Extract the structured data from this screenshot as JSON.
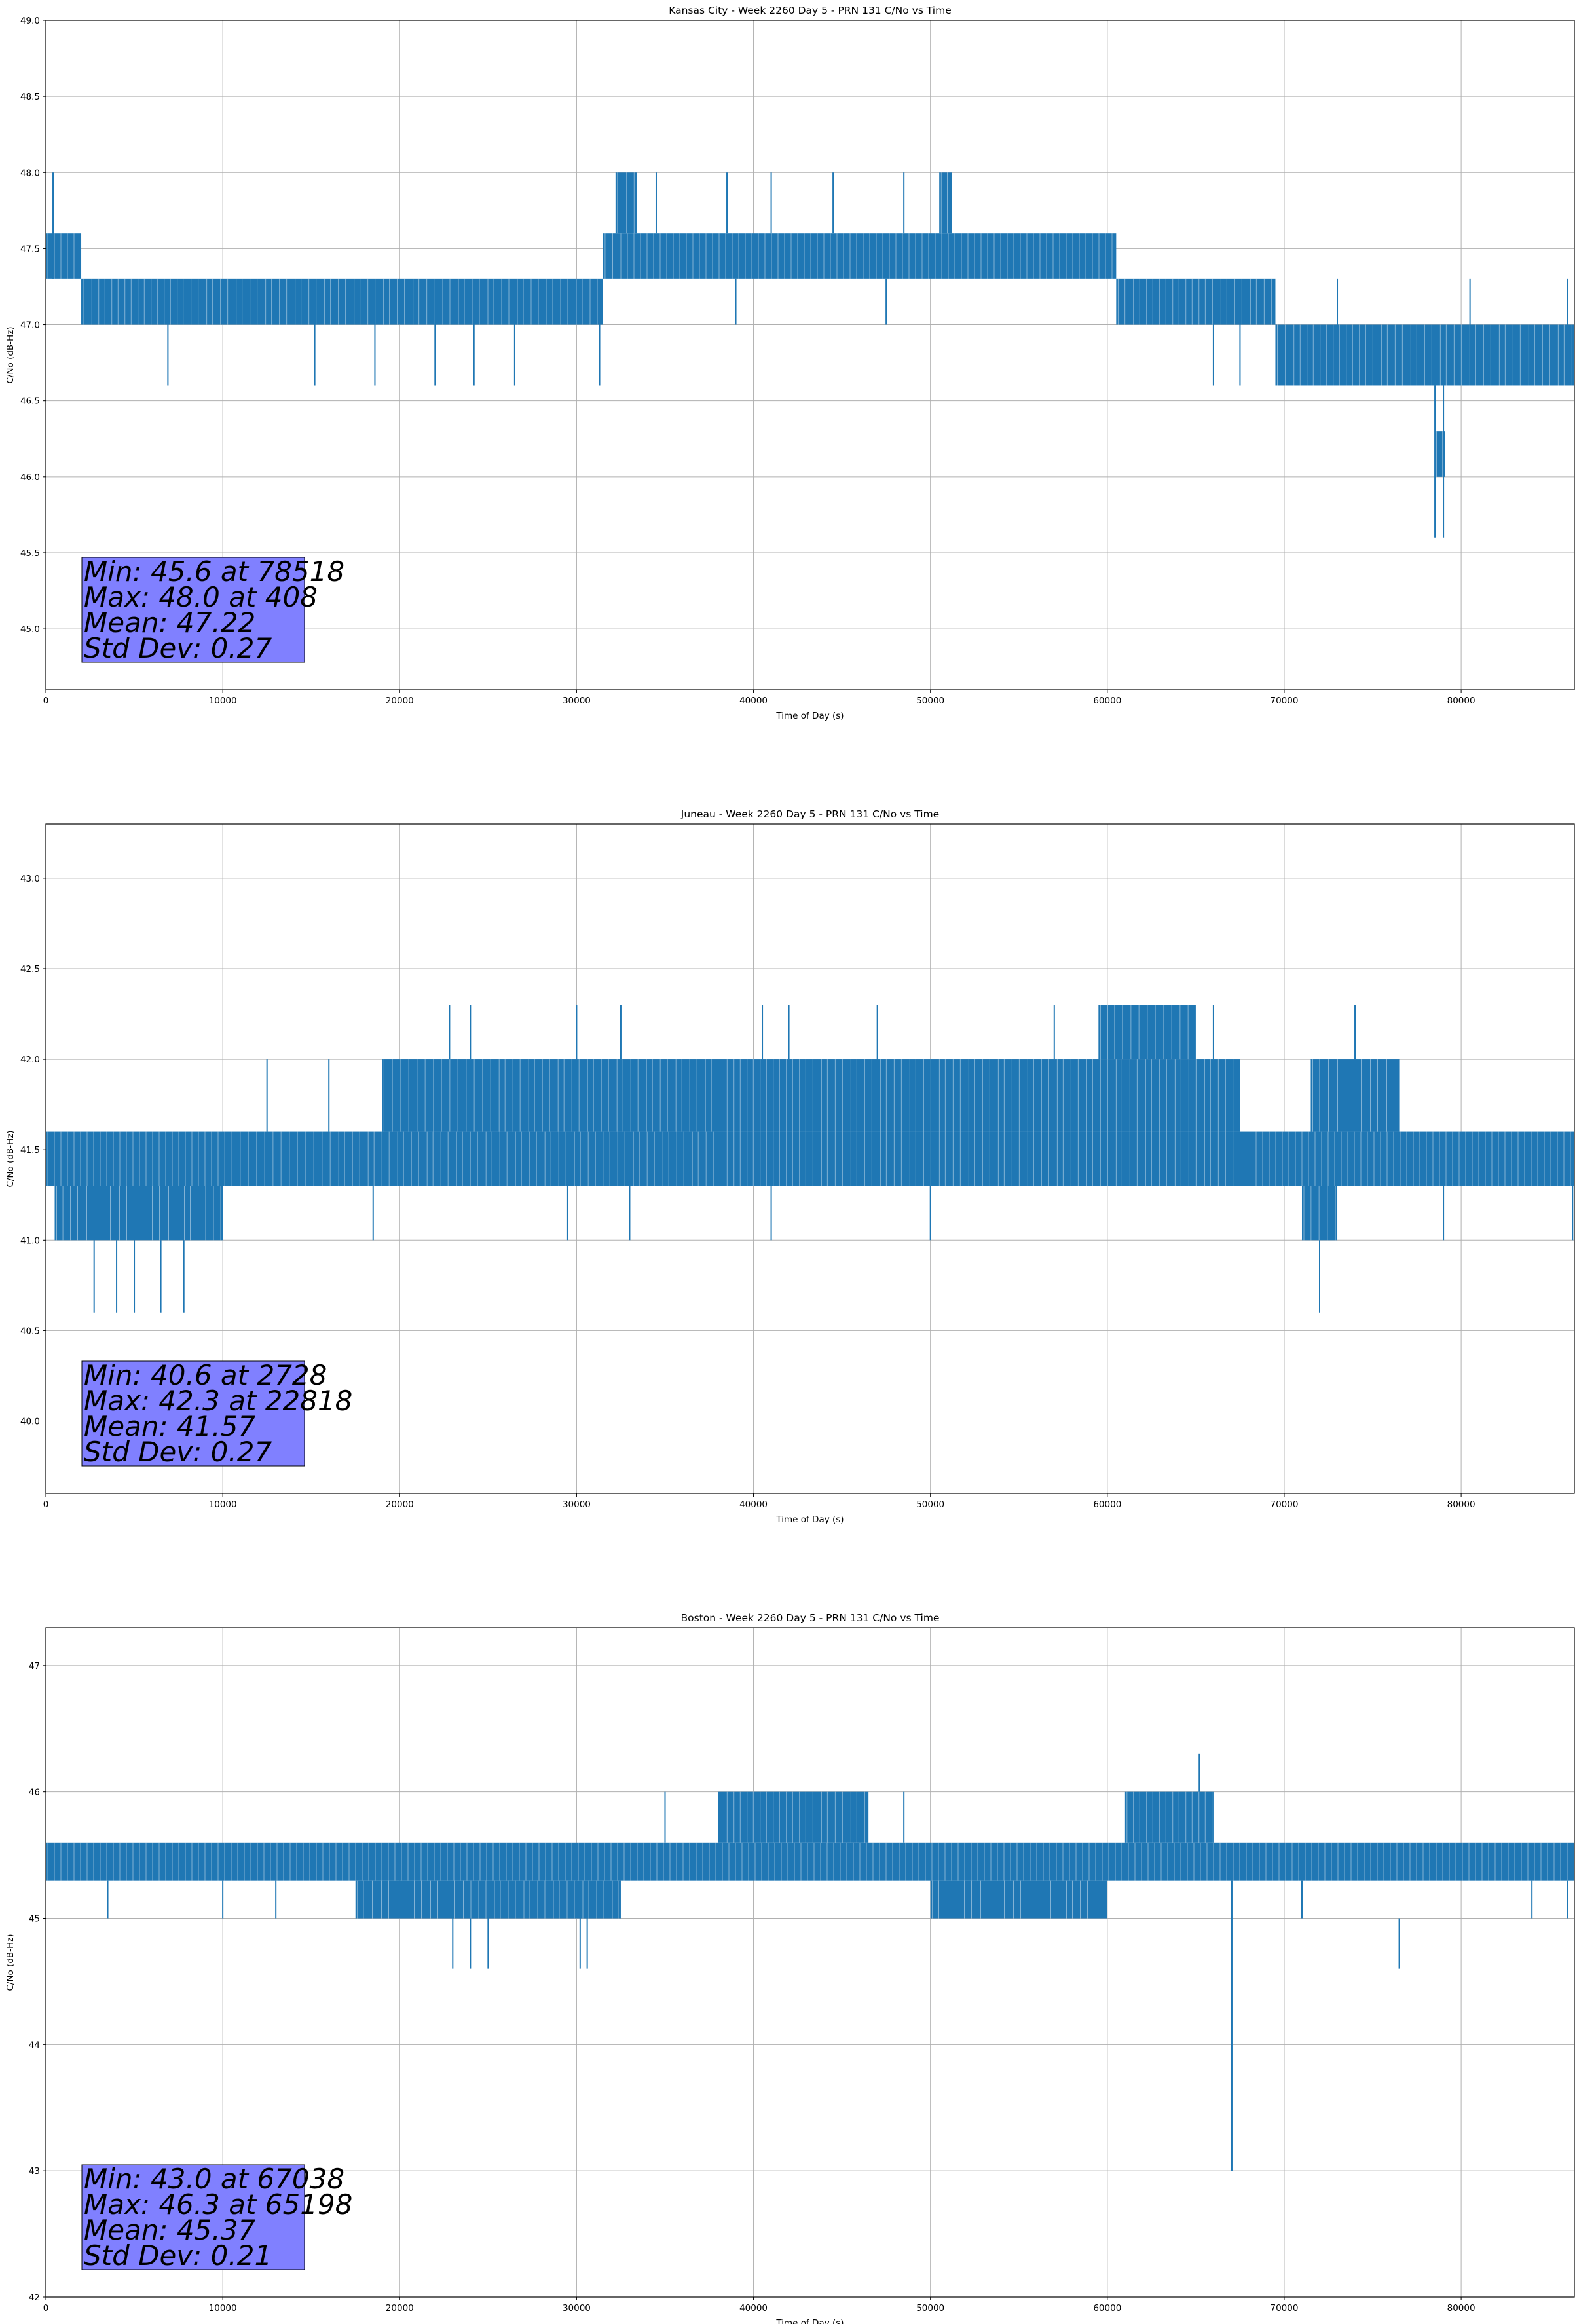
{
  "chart_data": [
    {
      "type": "line",
      "title": "Kansas City - Week 2260 Day 5 - PRN 131 C/No vs Time",
      "xlabel": "Time of Day (s)",
      "ylabel": "C/No (dB-Hz)",
      "xlim": [
        0,
        86400
      ],
      "ylim": [
        44.6,
        49.0
      ],
      "xticks": [
        0,
        10000,
        20000,
        30000,
        40000,
        50000,
        60000,
        70000,
        80000
      ],
      "yticks": [
        45.0,
        45.5,
        46.0,
        46.5,
        47.0,
        47.5,
        48.0,
        48.5,
        49.0
      ],
      "ytick_decimals": 1,
      "grid": true,
      "line_color": "#1f77b4",
      "stats_box": {
        "color": "#8080ff",
        "lines": [
          "Min: 45.6 at 78518",
          "Max: 48.0 at 408",
          "Mean: 47.22",
          "Std Dev: 0.27"
        ]
      },
      "series": [
        {
          "segments": [
            {
              "x": [
                0,
                2000
              ],
              "low": 47.3,
              "high": 47.6
            },
            {
              "x": [
                2000,
                31500
              ],
              "low": 47.0,
              "high": 47.3
            },
            {
              "x": [
                31500,
                60500
              ],
              "low": 47.3,
              "high": 47.6
            },
            {
              "x": [
                60500,
                69500
              ],
              "low": 47.0,
              "high": 47.3
            },
            {
              "x": [
                69500,
                86400
              ],
              "low": 46.6,
              "high": 47.0
            },
            {
              "x": [
                32200,
                33400
              ],
              "low": 47.6,
              "high": 48.0
            },
            {
              "x": [
                50500,
                51200
              ],
              "low": 47.6,
              "high": 48.0
            },
            {
              "x": [
                78500,
                79100
              ],
              "low": 46.0,
              "high": 46.3
            }
          ],
          "spikes": [
            [
              408,
              47.3,
              48.0
            ],
            [
              6900,
              46.6,
              47.0
            ],
            [
              15200,
              46.6,
              47.0
            ],
            [
              18600,
              46.6,
              47.0
            ],
            [
              22000,
              46.6,
              47.0
            ],
            [
              24200,
              46.6,
              47.0
            ],
            [
              26500,
              46.6,
              47.0
            ],
            [
              31300,
              46.6,
              47.0
            ],
            [
              34500,
              47.6,
              48.0
            ],
            [
              38500,
              47.6,
              48.0
            ],
            [
              41000,
              47.6,
              48.0
            ],
            [
              44500,
              47.6,
              48.0
            ],
            [
              48500,
              47.6,
              48.0
            ],
            [
              39000,
              47.0,
              47.3
            ],
            [
              47500,
              47.0,
              47.3
            ],
            [
              66000,
              46.6,
              47.0
            ],
            [
              67500,
              46.6,
              47.0
            ],
            [
              78518,
              45.6,
              46.6
            ],
            [
              79000,
              45.6,
              46.6
            ],
            [
              73000,
              47.0,
              47.3
            ],
            [
              80500,
              47.0,
              47.3
            ],
            [
              86000,
              47.0,
              47.3
            ]
          ]
        }
      ]
    },
    {
      "type": "line",
      "title": "Juneau - Week 2260 Day 5 - PRN 131 C/No vs Time",
      "xlabel": "Time of Day (s)",
      "ylabel": "C/No (dB-Hz)",
      "xlim": [
        0,
        86400
      ],
      "ylim": [
        39.6,
        43.3
      ],
      "xticks": [
        0,
        10000,
        20000,
        30000,
        40000,
        50000,
        60000,
        70000,
        80000
      ],
      "yticks": [
        40.0,
        40.5,
        41.0,
        41.5,
        42.0,
        42.5,
        43.0
      ],
      "ytick_decimals": 1,
      "grid": true,
      "line_color": "#1f77b4",
      "stats_box": {
        "color": "#8080ff",
        "lines": [
          "Min: 40.6 at 2728",
          "Max: 42.3 at 22818",
          "Mean: 41.57",
          "Std Dev: 0.27"
        ]
      },
      "series": [
        {
          "segments": [
            {
              "x": [
                0,
                10000
              ],
              "low": 41.3,
              "high": 41.6
            },
            {
              "x": [
                500,
                10000
              ],
              "low": 41.0,
              "high": 41.3
            },
            {
              "x": [
                10000,
                38000
              ],
              "low": 41.3,
              "high": 41.6
            },
            {
              "x": [
                19000,
                38000
              ],
              "low": 41.6,
              "high": 42.0
            },
            {
              "x": [
                38000,
                67500
              ],
              "low": 41.6,
              "high": 42.0
            },
            {
              "x": [
                38000,
                67500
              ],
              "low": 41.3,
              "high": 41.6
            },
            {
              "x": [
                67500,
                86400
              ],
              "low": 41.3,
              "high": 41.6
            },
            {
              "x": [
                71500,
                76500
              ],
              "low": 41.6,
              "high": 42.0
            },
            {
              "x": [
                71000,
                73000
              ],
              "low": 41.0,
              "high": 41.3
            },
            {
              "x": [
                59500,
                65000
              ],
              "low": 42.0,
              "high": 42.3
            }
          ],
          "spikes": [
            [
              2728,
              40.6,
              41.0
            ],
            [
              4000,
              40.6,
              41.0
            ],
            [
              5000,
              40.6,
              41.0
            ],
            [
              6500,
              40.6,
              41.0
            ],
            [
              7800,
              40.6,
              41.0
            ],
            [
              22818,
              42.0,
              42.3
            ],
            [
              24000,
              42.0,
              42.3
            ],
            [
              30000,
              42.0,
              42.3
            ],
            [
              32500,
              42.0,
              42.3
            ],
            [
              40500,
              42.0,
              42.3
            ],
            [
              42000,
              42.0,
              42.3
            ],
            [
              47000,
              42.0,
              42.3
            ],
            [
              57000,
              42.0,
              42.3
            ],
            [
              66000,
              42.0,
              42.3
            ],
            [
              74000,
              42.0,
              42.3
            ],
            [
              72000,
              40.6,
              41.0
            ],
            [
              18500,
              41.0,
              41.3
            ],
            [
              29500,
              41.0,
              41.3
            ],
            [
              33000,
              41.0,
              41.3
            ],
            [
              41000,
              41.0,
              41.3
            ],
            [
              50000,
              41.0,
              41.3
            ],
            [
              79000,
              41.0,
              41.3
            ],
            [
              86300,
              41.0,
              41.3
            ],
            [
              12500,
              41.6,
              42.0
            ],
            [
              16000,
              41.6,
              42.0
            ]
          ]
        }
      ]
    },
    {
      "type": "line",
      "title": "Boston - Week 2260 Day 5 - PRN 131 C/No vs Time",
      "xlabel": "Time of Day (s)",
      "ylabel": "C/No (dB-Hz)",
      "xlim": [
        0,
        86400
      ],
      "ylim": [
        42.0,
        47.3
      ],
      "xticks": [
        0,
        10000,
        20000,
        30000,
        40000,
        50000,
        60000,
        70000,
        80000
      ],
      "yticks": [
        42,
        43,
        44,
        45,
        46,
        47
      ],
      "ytick_decimals": 0,
      "grid": true,
      "line_color": "#1f77b4",
      "stats_box": {
        "color": "#8080ff",
        "lines": [
          "Min: 43.0 at 67038",
          "Max: 46.3 at 65198",
          "Mean: 45.37",
          "Std Dev: 0.21"
        ]
      },
      "series": [
        {
          "segments": [
            {
              "x": [
                0,
                86400
              ],
              "low": 45.3,
              "high": 45.6
            },
            {
              "x": [
                17500,
                32500
              ],
              "low": 45.0,
              "high": 45.3
            },
            {
              "x": [
                38000,
                46500
              ],
              "low": 45.6,
              "high": 46.0
            },
            {
              "x": [
                61000,
                66000
              ],
              "low": 45.6,
              "high": 46.0
            },
            {
              "x": [
                50000,
                60000
              ],
              "low": 45.0,
              "high": 45.3
            }
          ],
          "spikes": [
            [
              65198,
              46.0,
              46.3
            ],
            [
              67038,
              43.0,
              45.3
            ],
            [
              23000,
              44.6,
              45.0
            ],
            [
              24000,
              44.6,
              45.0
            ],
            [
              25000,
              44.6,
              45.0
            ],
            [
              30200,
              44.6,
              45.0
            ],
            [
              30600,
              44.6,
              45.0
            ],
            [
              76500,
              44.6,
              45.0
            ],
            [
              3500,
              45.0,
              45.3
            ],
            [
              10000,
              45.0,
              45.3
            ],
            [
              13000,
              45.0,
              45.3
            ],
            [
              35000,
              45.6,
              46.0
            ],
            [
              48500,
              45.6,
              46.0
            ],
            [
              71000,
              45.0,
              45.3
            ],
            [
              84000,
              45.0,
              45.3
            ],
            [
              86000,
              45.0,
              45.3
            ]
          ]
        }
      ]
    }
  ]
}
